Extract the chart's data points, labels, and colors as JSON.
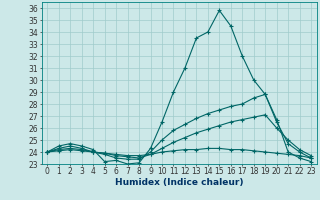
{
  "xlabel": "Humidex (Indice chaleur)",
  "ylabel": "",
  "background_color": "#cce8e8",
  "grid_color": "#a0cccc",
  "line_color": "#006666",
  "xlim": [
    -0.5,
    23.5
  ],
  "ylim": [
    23,
    36.5
  ],
  "yticks": [
    23,
    24,
    25,
    26,
    27,
    28,
    29,
    30,
    31,
    32,
    33,
    34,
    35,
    36
  ],
  "xticks": [
    0,
    1,
    2,
    3,
    4,
    5,
    6,
    7,
    8,
    9,
    10,
    11,
    12,
    13,
    14,
    15,
    16,
    17,
    18,
    19,
    20,
    21,
    22,
    23
  ],
  "series": [
    [
      24.0,
      24.5,
      24.7,
      24.5,
      24.2,
      23.2,
      23.3,
      23.0,
      23.1,
      24.3,
      26.5,
      29.0,
      31.0,
      33.5,
      34.0,
      35.8,
      34.5,
      32.0,
      30.0,
      28.8,
      26.7,
      24.0,
      23.5,
      23.2
    ],
    [
      24.0,
      24.3,
      24.5,
      24.3,
      24.0,
      23.8,
      23.5,
      23.4,
      23.4,
      24.0,
      25.0,
      25.8,
      26.3,
      26.8,
      27.2,
      27.5,
      27.8,
      28.0,
      28.5,
      28.8,
      26.5,
      24.7,
      24.0,
      23.5
    ],
    [
      24.0,
      24.2,
      24.3,
      24.2,
      24.0,
      23.9,
      23.7,
      23.6,
      23.5,
      23.8,
      24.3,
      24.8,
      25.2,
      25.6,
      25.9,
      26.2,
      26.5,
      26.7,
      26.9,
      27.1,
      26.0,
      25.0,
      24.2,
      23.7
    ],
    [
      24.0,
      24.1,
      24.2,
      24.1,
      24.0,
      23.9,
      23.8,
      23.7,
      23.7,
      23.8,
      24.0,
      24.1,
      24.2,
      24.2,
      24.3,
      24.3,
      24.2,
      24.2,
      24.1,
      24.0,
      23.9,
      23.8,
      23.7,
      23.5
    ]
  ],
  "tick_fontsize": 5.5,
  "xlabel_fontsize": 6.5
}
